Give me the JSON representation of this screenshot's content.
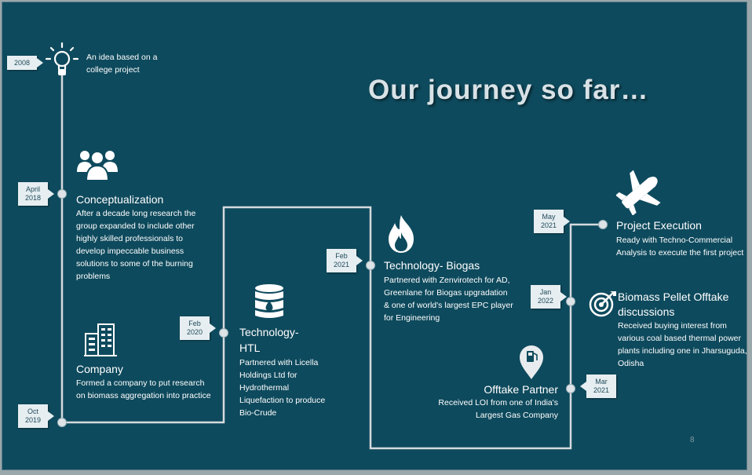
{
  "title": "Our journey so far…",
  "page_number": "8",
  "colors": {
    "background": "#0e4a5d",
    "track": "#d5dadd",
    "callout": "#e6eef1",
    "callout_text": "#1f4a5a",
    "title": "#d8e2e6"
  },
  "milestones": {
    "idea": {
      "date": "2008",
      "heading": "",
      "body": "An idea based on a college project",
      "icon": "lightbulb-icon"
    },
    "conceptualization": {
      "date": [
        "April",
        "2018"
      ],
      "heading": "Conceptualization",
      "body": "After a decade long research the group expanded to include other highly skilled professionals to develop impeccable business solutions to some of the burning problems",
      "icon": "team-icon"
    },
    "company": {
      "date": [
        "Oct",
        "2019"
      ],
      "heading": "Company",
      "body": "Formed a company to put research on biomass aggregation into practice",
      "icon": "building-icon"
    },
    "htl": {
      "date": [
        "Feb",
        "2020"
      ],
      "heading": [
        "Technology-",
        "HTL"
      ],
      "body": "Partnered with Licella Holdings Ltd for Hydrothermal Liquefaction to produce Bio-Crude",
      "icon": "oil-barrel-icon"
    },
    "biogas": {
      "date": [
        "Feb",
        "2021"
      ],
      "heading": "Technology- Biogas",
      "body": "Partnered with Zenvirotech for AD, Greenlane for Biogas upgradation & one of world's largest EPC player for Engineering",
      "icon": "flame-icon"
    },
    "offtake": {
      "date": [
        "Mar",
        "2021"
      ],
      "heading": "Offtake Partner",
      "body": "Received LOI from one of India's Largest Gas Company",
      "icon": "gas-pin-icon"
    },
    "pellet": {
      "date": [
        "Jan",
        "2022"
      ],
      "heading": [
        "Biomass Pellet Offtake",
        "discussions"
      ],
      "body": "Received buying interest from various coal based thermal power plants including one in Jharsuguda, Odisha",
      "icon": "target-icon"
    },
    "execution": {
      "date": [
        "May",
        "2021"
      ],
      "heading": "Project Execution",
      "body": "Ready with Techno-Commercial Analysis to execute the first project",
      "icon": "airplane-icon"
    }
  }
}
